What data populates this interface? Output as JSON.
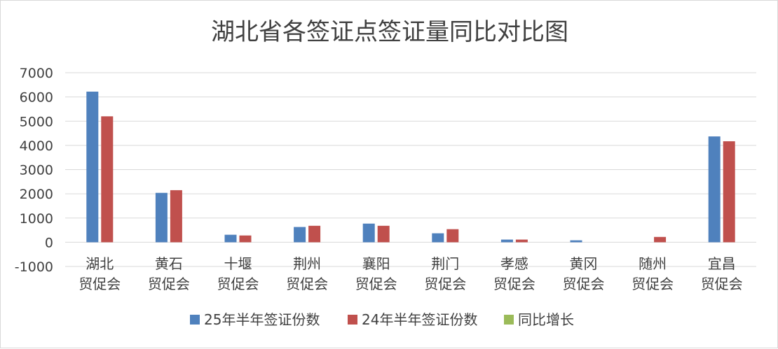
{
  "chart_data": {
    "type": "bar",
    "title": "湖北省各签证点签证量同比对比图",
    "xlabel": "",
    "ylabel": "",
    "ylim": [
      -1000,
      7000
    ],
    "yticks": [
      7000,
      6000,
      5000,
      4000,
      3000,
      2000,
      1000,
      0,
      -1000
    ],
    "grid": true,
    "legend_position": "bottom",
    "categories": [
      [
        "湖北",
        "贸促会"
      ],
      [
        "黄石",
        "贸促会"
      ],
      [
        "十堰",
        "贸促会"
      ],
      [
        "荆州",
        "贸促会"
      ],
      [
        "襄阳",
        "贸促会"
      ],
      [
        "荆门",
        "贸促会"
      ],
      [
        "孝感",
        "贸促会"
      ],
      [
        "黄冈",
        "贸促会"
      ],
      [
        "随州",
        "贸促会"
      ],
      [
        "宜昌",
        "贸促会"
      ]
    ],
    "series": [
      {
        "name": "25年半年签证份数",
        "color": "#4f81bd",
        "values": [
          6220,
          2040,
          310,
          630,
          770,
          370,
          110,
          80,
          0,
          4370
        ]
      },
      {
        "name": "24年半年签证份数",
        "color": "#c0504d",
        "values": [
          5200,
          2150,
          280,
          680,
          680,
          540,
          110,
          0,
          220,
          4170
        ]
      },
      {
        "name": "同比增长",
        "color": "#9bbb59",
        "values": [
          0,
          0,
          0,
          0,
          0,
          0,
          0,
          0,
          0,
          0
        ]
      }
    ]
  }
}
